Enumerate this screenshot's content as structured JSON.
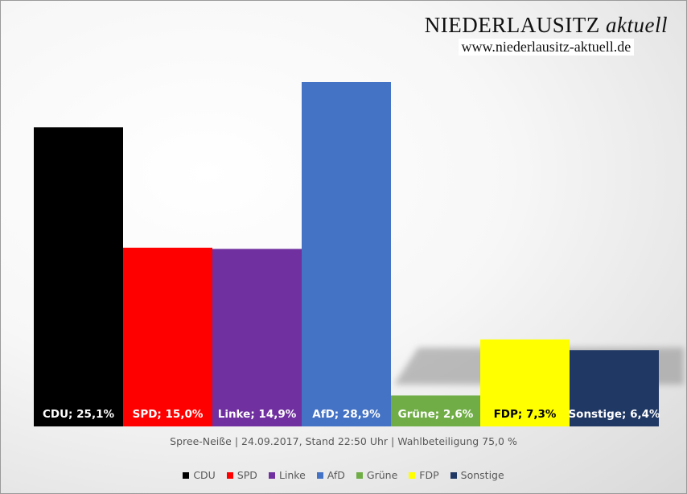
{
  "brand": {
    "name": "NIEDERLAUSITZ",
    "suffix": "aktuell",
    "url": "www.niederlausitz-aktuell.de"
  },
  "chart_data": {
    "type": "bar",
    "title": "",
    "caption": "Spree-Neiße | 24.09.2017, Stand 22:50 Uhr | Wahlbeteiligung 75,0 %",
    "categories": [
      "CDU",
      "SPD",
      "Linke",
      "AfD",
      "Grüne",
      "FDP",
      "Sonstige"
    ],
    "values": [
      25.1,
      15.0,
      14.9,
      28.9,
      2.6,
      7.3,
      6.4
    ],
    "data_labels": [
      "CDU; 25,1%",
      "SPD; 15,0%",
      "Linke; 14,9%",
      "AfD; 28,9%",
      "Grüne; 2,6%",
      "FDP; 7,3%",
      "Sonstige; 6,4%"
    ],
    "colors": [
      "#000000",
      "#ff0000",
      "#7030a0",
      "#4472c4",
      "#70ad47",
      "#ffff00",
      "#203864"
    ],
    "label_colors": [
      "#ffffff",
      "#ffffff",
      "#ffffff",
      "#ffffff",
      "#ffffff",
      "#000000",
      "#ffffff"
    ],
    "legend": [
      "CDU",
      "SPD",
      "Linke",
      "AfD",
      "Grüne",
      "FDP",
      "Sonstige"
    ],
    "legend_position": "bottom",
    "xlabel": "",
    "ylabel": "",
    "ylim": [
      0,
      30
    ],
    "grid": false
  }
}
